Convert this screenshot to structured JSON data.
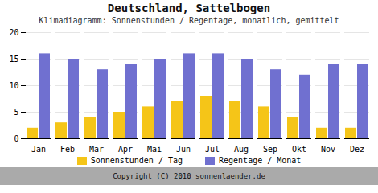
{
  "chart_data": {
    "type": "bar",
    "title": "Deutschland, Sattelbogen",
    "subtitle": "Klimadiagramm: Sonnenstunden / Regentage, monatlich, gemittelt",
    "caption": "Copyright (C) 2010 sonnenlaender.de",
    "categories": [
      "Jan",
      "Feb",
      "Mar",
      "Apr",
      "Mai",
      "Jun",
      "Jul",
      "Aug",
      "Sep",
      "Okt",
      "Nov",
      "Dez"
    ],
    "series": [
      {
        "name": "Sonnenstunden / Tag",
        "color": "#f5c518",
        "values": [
          2,
          3,
          4,
          5,
          6,
          7,
          8,
          7,
          6,
          4,
          2,
          2
        ]
      },
      {
        "name": "Regentage / Monat",
        "color": "#7070d0",
        "values": [
          16,
          15,
          13,
          14,
          15,
          16,
          16,
          15,
          13,
          12,
          14,
          14
        ]
      }
    ],
    "ylim": [
      0,
      20
    ],
    "yticks": [
      0,
      5,
      10,
      15,
      20
    ],
    "grid": true,
    "legend": "bottom"
  }
}
